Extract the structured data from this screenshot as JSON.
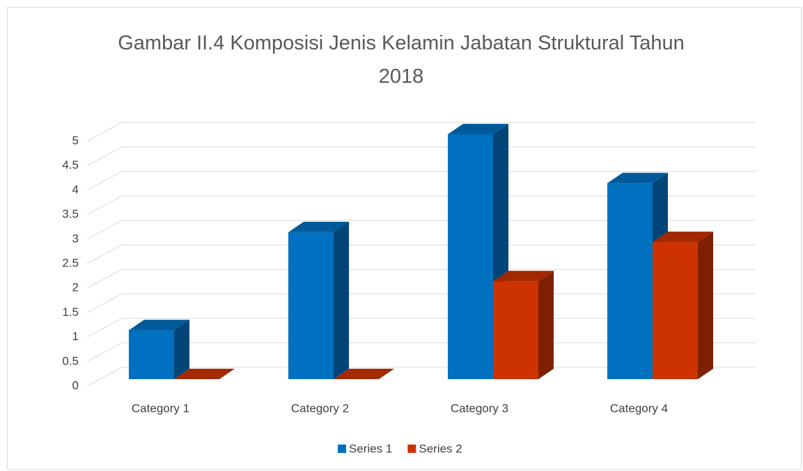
{
  "chart_data": {
    "type": "bar3d",
    "title": "Gambar II.4 Komposisi Jenis Kelamin Jabatan Struktural Tahun 2018",
    "categories": [
      "Category 1",
      "Category 2",
      "Category 3",
      "Category 4"
    ],
    "series": [
      {
        "name": "Series 1",
        "color": "#0070c0",
        "values": [
          1,
          3,
          5,
          4
        ]
      },
      {
        "name": "Series 2",
        "color": "#cc3300",
        "values": [
          0,
          0,
          2,
          2.8
        ]
      }
    ],
    "ylim": [
      0,
      5
    ],
    "yticks": [
      0,
      0.5,
      1,
      1.5,
      2,
      2.5,
      3,
      3.5,
      4,
      4.5,
      5
    ],
    "grid": true,
    "legend": "bottom"
  }
}
